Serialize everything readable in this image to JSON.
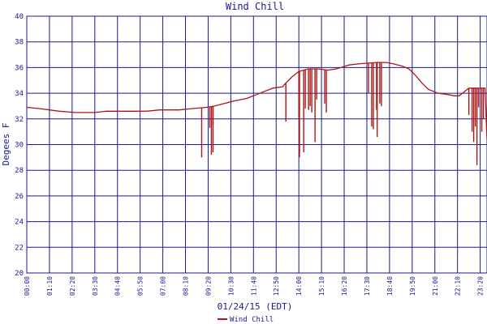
{
  "chart_data": {
    "type": "line",
    "title": "Wind Chill",
    "xlabel": "01/24/15 (EDT)",
    "ylabel": "Degees F",
    "ylim": [
      20,
      40
    ],
    "yticks": [
      20,
      22,
      24,
      26,
      28,
      30,
      32,
      34,
      36,
      38,
      40
    ],
    "xlim": [
      0,
      1421
    ],
    "x_unit": "minutes after 00:00",
    "x_tick_labels": [
      "00:00",
      "01:10",
      "02:20",
      "03:30",
      "04:40",
      "05:50",
      "07:00",
      "08:10",
      "09:20",
      "10:30",
      "11:40",
      "12:50",
      "14:00",
      "15:10",
      "16:20",
      "17:30",
      "18:40",
      "19:50",
      "21:00",
      "22:10",
      "23:20",
      "23:59"
    ],
    "grid": true,
    "legend_position": "bottom-center",
    "colors": {
      "series": "#b01515",
      "grid": "#1a1a8c",
      "text": "#1a1a8c"
    },
    "series": [
      {
        "name": "Wind Chill",
        "baseline": [
          [
            0,
            32.9
          ],
          [
            40,
            32.8
          ],
          [
            70,
            32.7
          ],
          [
            100,
            32.6
          ],
          [
            150,
            32.5
          ],
          [
            210,
            32.5
          ],
          [
            245,
            32.6
          ],
          [
            300,
            32.6
          ],
          [
            370,
            32.6
          ],
          [
            410,
            32.7
          ],
          [
            470,
            32.7
          ],
          [
            510,
            32.8
          ],
          [
            555,
            32.9
          ],
          [
            580,
            33.0
          ],
          [
            610,
            33.2
          ],
          [
            640,
            33.4
          ],
          [
            680,
            33.6
          ],
          [
            710,
            33.9
          ],
          [
            740,
            34.2
          ],
          [
            760,
            34.4
          ],
          [
            790,
            34.5
          ],
          [
            800,
            34.8
          ],
          [
            820,
            35.3
          ],
          [
            840,
            35.7
          ],
          [
            870,
            35.9
          ],
          [
            900,
            35.9
          ],
          [
            930,
            35.8
          ],
          [
            955,
            35.9
          ],
          [
            970,
            36.0
          ],
          [
            995,
            36.2
          ],
          [
            1030,
            36.3
          ],
          [
            1080,
            36.4
          ],
          [
            1110,
            36.4
          ],
          [
            1130,
            36.3
          ],
          [
            1160,
            36.1
          ],
          [
            1180,
            35.9
          ],
          [
            1200,
            35.4
          ],
          [
            1220,
            34.8
          ],
          [
            1240,
            34.3
          ],
          [
            1270,
            34.0
          ],
          [
            1300,
            33.9
          ],
          [
            1320,
            33.8
          ],
          [
            1335,
            33.8
          ],
          [
            1350,
            34.1
          ],
          [
            1365,
            34.4
          ],
          [
            1400,
            34.4
          ],
          [
            1415,
            34.4
          ],
          [
            1421,
            30.4
          ]
        ],
        "dips": [
          [
            540,
            29.0
          ],
          [
            565,
            31.3
          ],
          [
            570,
            29.2
          ],
          [
            575,
            31.5
          ],
          [
            575,
            29.4
          ],
          [
            800,
            31.8
          ],
          [
            840,
            32.0
          ],
          [
            842,
            29.0
          ],
          [
            855,
            29.4
          ],
          [
            860,
            32.8
          ],
          [
            870,
            32.7
          ],
          [
            875,
            33.0
          ],
          [
            880,
            32.5
          ],
          [
            890,
            30.2
          ],
          [
            895,
            33.5
          ],
          [
            920,
            33.2
          ],
          [
            925,
            32.5
          ],
          [
            1055,
            34.0
          ],
          [
            1065,
            31.4
          ],
          [
            1070,
            31.2
          ],
          [
            1080,
            32.7
          ],
          [
            1082,
            30.6
          ],
          [
            1090,
            33.2
          ],
          [
            1095,
            33.0
          ],
          [
            1365,
            32.3
          ],
          [
            1375,
            31.0
          ],
          [
            1380,
            30.2
          ],
          [
            1385,
            31.4
          ],
          [
            1390,
            28.4
          ],
          [
            1395,
            32.9
          ],
          [
            1405,
            31.0
          ],
          [
            1410,
            32.0
          ]
        ]
      }
    ]
  }
}
